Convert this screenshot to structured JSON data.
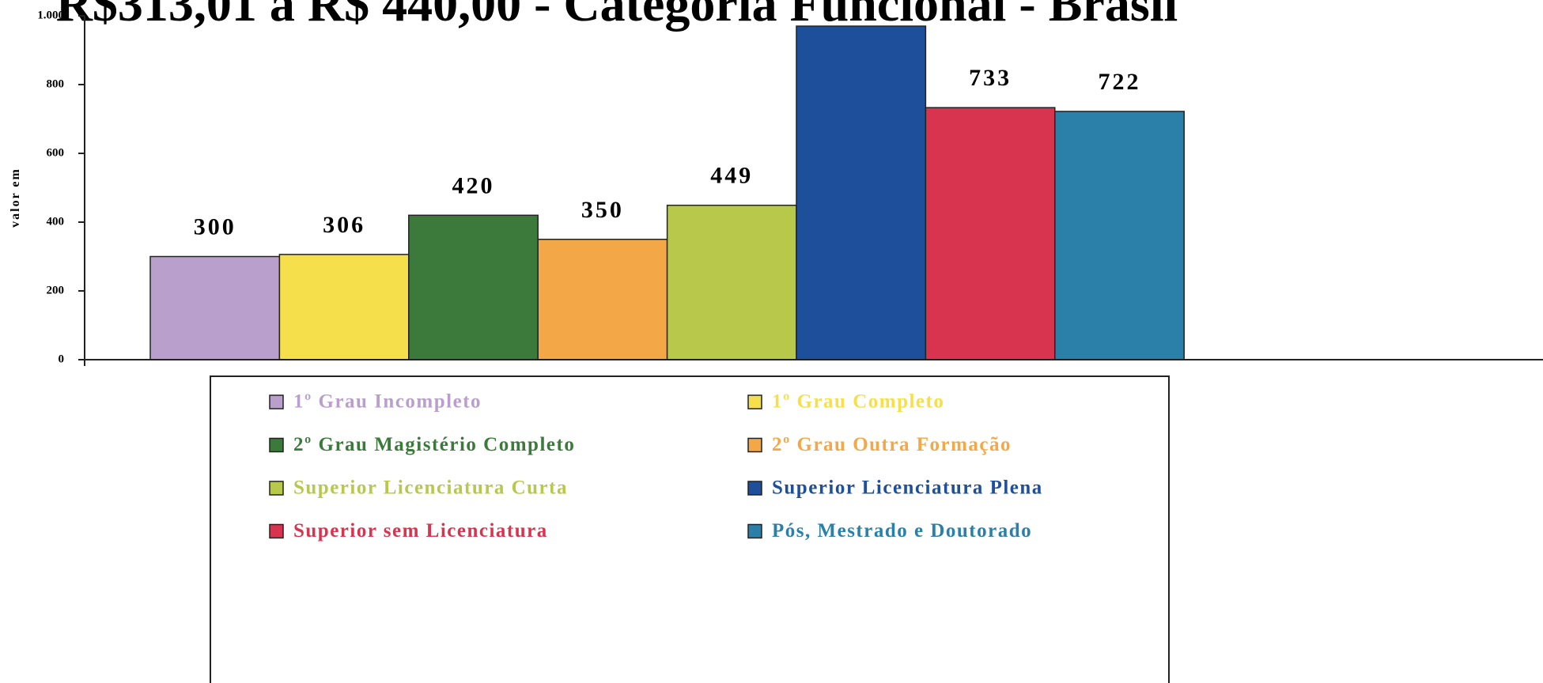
{
  "chart_data": {
    "type": "bar",
    "title": "R$313,01 a R$ 440,00 - Categoria Funcional - Brasil",
    "y_label": "valor em",
    "categories": [
      "1º Grau Incompleto",
      "1º Grau Completo",
      "2º Grau Magistério Completo",
      "2º Grau Outra Formação",
      "Superior Licenciatura Curta",
      "Superior Licenciatura Plena",
      "Superior sem Licenciatura",
      "Pós, Mestrado e Doutorado"
    ],
    "values": [
      300,
      306,
      420,
      350,
      449,
      970,
      733,
      722
    ],
    "value_labels": [
      "300",
      "306",
      "420",
      "350",
      "449",
      null,
      "733",
      "722"
    ],
    "colors": [
      "#b9a0cc",
      "#f5e04c",
      "#3b7a3b",
      "#f4a746",
      "#b8c84a",
      "#1d4f9a",
      "#d8344f",
      "#2a80a8"
    ],
    "ylim": [
      0,
      1000
    ],
    "yticks": [
      0,
      200,
      400,
      600,
      800,
      {
        "value": 1000,
        "label": "1.000"
      }
    ],
    "legend": "bottom"
  }
}
